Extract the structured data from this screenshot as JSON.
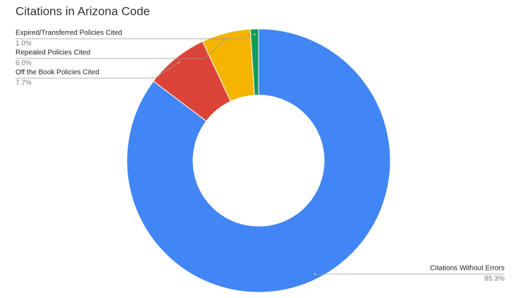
{
  "chart_data": {
    "type": "donut",
    "title": "Citations in Arizona Code",
    "categories": [
      "Citations Without Errors",
      "Off the Book Policies Cited",
      "Repealed Policies Cited",
      "Expired/Transferred Policies Cited"
    ],
    "values": [
      85.3,
      7.7,
      6.0,
      1.0
    ],
    "value_labels": [
      "85.3%",
      "7.7%",
      "6.0%",
      "1.0%"
    ],
    "colors": [
      "#4285f4",
      "#db4437",
      "#f4b400",
      "#0f9d58"
    ]
  }
}
